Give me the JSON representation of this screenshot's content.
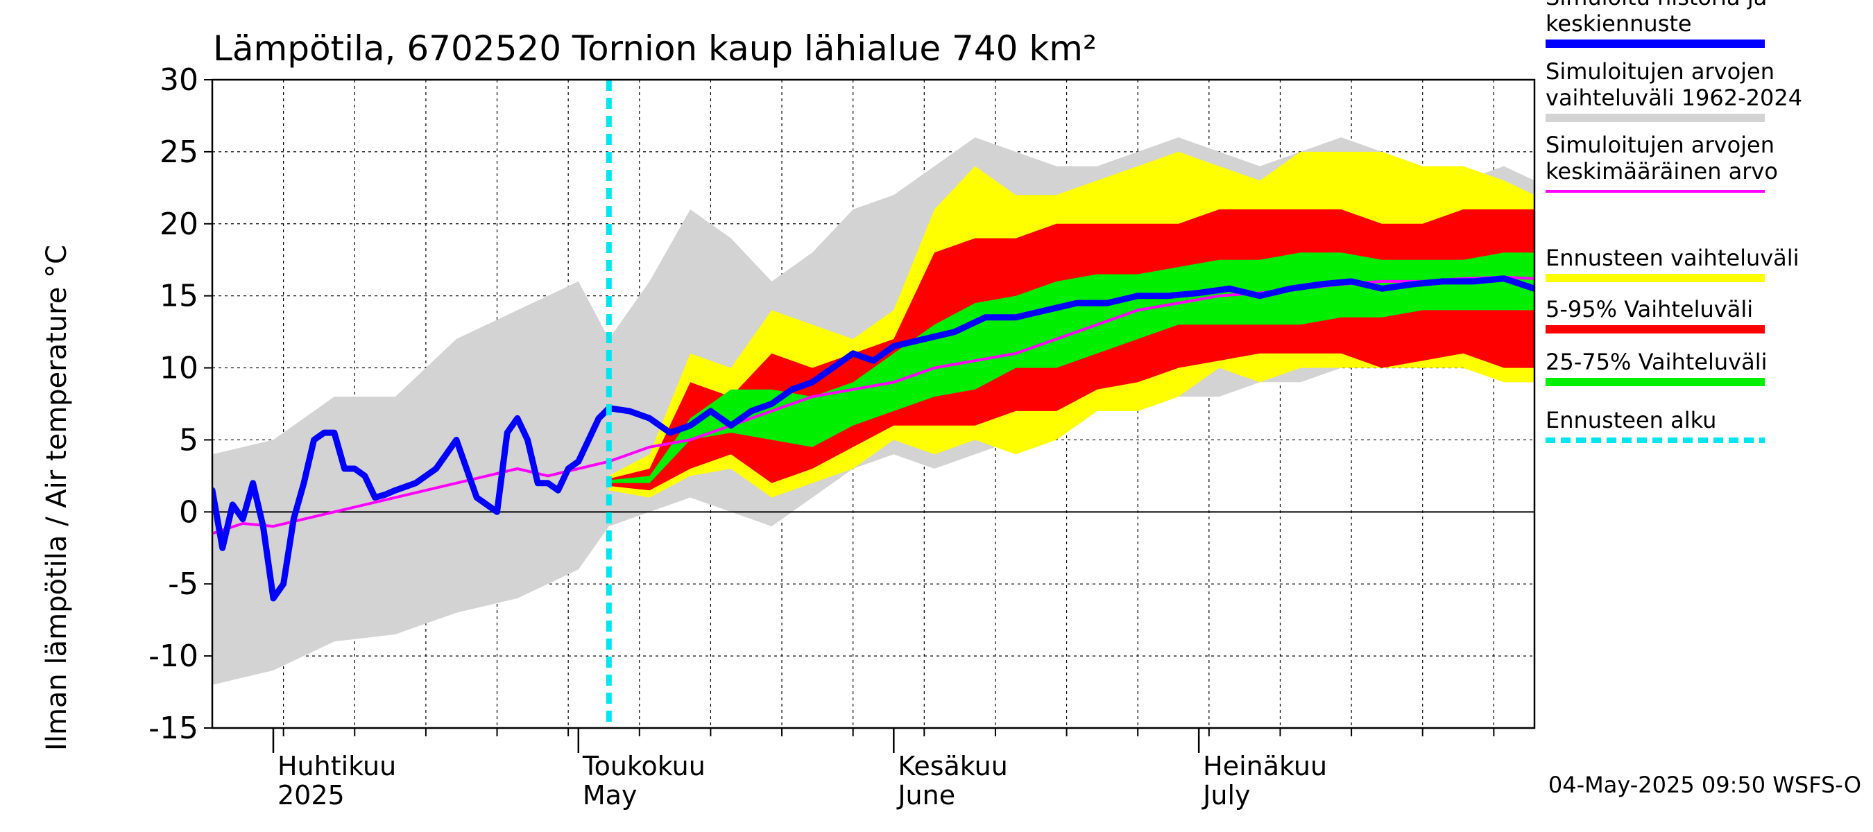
{
  "chart_data": {
    "type": "area",
    "title": "Lämpötila, 6702520 Tornion kaup lähialue 740 km²",
    "ylabel": "Ilman lämpötila / Air temperature   °C",
    "xlabel": "",
    "ylim": [
      -15,
      30
    ],
    "yticks": [
      "30",
      "25",
      "20",
      "15",
      "10",
      "5",
      "0",
      "-5",
      "-10",
      "-15"
    ],
    "xlim": [
      "2025-03-26",
      "2025-08-03"
    ],
    "forecast_start": "2025-05-04",
    "grid": true,
    "legend_position": "right",
    "months": [
      {
        "date": "2025-04-01",
        "label1": "Huhtikuu",
        "label2": "2025"
      },
      {
        "date": "2025-05-01",
        "label1": "Toukokuu",
        "label2": "May"
      },
      {
        "date": "2025-06-01",
        "label1": "Kesäkuu",
        "label2": "June"
      },
      {
        "date": "2025-07-01",
        "label1": "Heinäkuu",
        "label2": "July"
      }
    ],
    "legend": [
      {
        "label": "Simuloitu historia ja\nkeskiennuste",
        "color": "#0000ff"
      },
      {
        "label": "Simuloitujen arvojen\nvaihteluväli 1962-2024",
        "color": "#d3d3d3"
      },
      {
        "label": "Simuloitujen arvojen\nkeskimääräinen arvo",
        "color": "#ff00ff"
      },
      {
        "label": "Ennusteen vaihteluväli",
        "color": "#ffff00"
      },
      {
        "label": "5-95% Vaihteluväli",
        "color": "#ff0000"
      },
      {
        "label": "25-75% Vaihteluväli",
        "color": "#00ee00"
      },
      {
        "label": "Ennusteen alku",
        "color": "#00e5ee"
      }
    ],
    "series": [
      {
        "name": "Simuloitujen arvojen vaihteluväli 1962-2024",
        "kind": "band",
        "color": "#d3d3d3",
        "x": [
          "2025-03-26",
          "2025-04-01",
          "2025-04-07",
          "2025-04-13",
          "2025-04-19",
          "2025-04-25",
          "2025-05-01",
          "2025-05-04",
          "2025-05-08",
          "2025-05-12",
          "2025-05-16",
          "2025-05-20",
          "2025-05-24",
          "2025-05-28",
          "2025-06-01",
          "2025-06-05",
          "2025-06-09",
          "2025-06-13",
          "2025-06-17",
          "2025-06-21",
          "2025-06-25",
          "2025-06-29",
          "2025-07-03",
          "2025-07-07",
          "2025-07-11",
          "2025-07-15",
          "2025-07-19",
          "2025-07-23",
          "2025-07-27",
          "2025-07-31",
          "2025-08-03"
        ],
        "low": [
          -12,
          -11,
          -9,
          -8.5,
          -7,
          -6,
          -4,
          -1,
          0,
          1,
          0,
          -1,
          1,
          3,
          4,
          3,
          4,
          5,
          6,
          7,
          7,
          8,
          8,
          9,
          9,
          10,
          10,
          10,
          10,
          9,
          9
        ],
        "high": [
          4,
          5,
          8,
          8,
          12,
          14,
          16,
          12,
          16,
          21,
          19,
          16,
          18,
          21,
          22,
          24,
          26,
          25,
          24,
          24,
          25,
          26,
          25,
          24,
          25,
          26,
          25,
          24,
          23,
          24,
          23
        ]
      },
      {
        "name": "Ennusteen vaihteluväli",
        "kind": "band",
        "color": "#ffff00",
        "x": [
          "2025-05-04",
          "2025-05-08",
          "2025-05-12",
          "2025-05-16",
          "2025-05-20",
          "2025-05-24",
          "2025-05-28",
          "2025-06-01",
          "2025-06-05",
          "2025-06-09",
          "2025-06-13",
          "2025-06-17",
          "2025-06-21",
          "2025-06-25",
          "2025-06-29",
          "2025-07-03",
          "2025-07-07",
          "2025-07-11",
          "2025-07-15",
          "2025-07-19",
          "2025-07-23",
          "2025-07-27",
          "2025-07-31",
          "2025-08-03"
        ],
        "low": [
          1.5,
          1,
          2.5,
          3,
          1,
          2,
          3,
          5,
          4,
          5,
          4,
          5,
          7,
          7,
          8,
          10,
          9,
          10,
          10,
          10,
          10,
          10,
          9,
          9
        ],
        "high": [
          2.5,
          4,
          11,
          10,
          14,
          13,
          12,
          14,
          21,
          24,
          22,
          22,
          23,
          24,
          25,
          24,
          23,
          25,
          25,
          25,
          24,
          24,
          23,
          22
        ]
      },
      {
        "name": "5-95% Vaihteluväli",
        "kind": "band",
        "color": "#ff0000",
        "x": [
          "2025-05-04",
          "2025-05-08",
          "2025-05-12",
          "2025-05-16",
          "2025-05-20",
          "2025-05-24",
          "2025-05-28",
          "2025-06-01",
          "2025-06-05",
          "2025-06-09",
          "2025-06-13",
          "2025-06-17",
          "2025-06-21",
          "2025-06-25",
          "2025-06-29",
          "2025-07-03",
          "2025-07-07",
          "2025-07-11",
          "2025-07-15",
          "2025-07-19",
          "2025-07-23",
          "2025-07-27",
          "2025-07-31",
          "2025-08-03"
        ],
        "low": [
          1.8,
          1.5,
          3,
          4,
          2,
          3,
          4.5,
          6,
          6,
          6,
          7,
          7,
          8.5,
          9,
          10,
          10.5,
          11,
          11,
          11,
          10,
          10.5,
          11,
          10,
          10
        ],
        "high": [
          2.3,
          3,
          9,
          8,
          11,
          10,
          11,
          12,
          18,
          19,
          19,
          20,
          20,
          20,
          20,
          21,
          21,
          21,
          21,
          20,
          20,
          21,
          21,
          21
        ]
      },
      {
        "name": "25-75% Vaihteluväli",
        "kind": "band",
        "color": "#00ee00",
        "x": [
          "2025-05-04",
          "2025-05-08",
          "2025-05-12",
          "2025-05-16",
          "2025-05-20",
          "2025-05-24",
          "2025-05-28",
          "2025-06-01",
          "2025-06-05",
          "2025-06-09",
          "2025-06-13",
          "2025-06-17",
          "2025-06-21",
          "2025-06-25",
          "2025-06-29",
          "2025-07-03",
          "2025-07-07",
          "2025-07-11",
          "2025-07-15",
          "2025-07-19",
          "2025-07-23",
          "2025-07-27",
          "2025-07-31",
          "2025-08-03"
        ],
        "low": [
          2,
          2,
          5,
          5.5,
          5,
          4.5,
          6,
          7,
          8,
          8.5,
          10,
          10,
          11,
          12,
          13,
          13,
          13,
          13,
          13.5,
          13.5,
          14,
          14,
          14,
          14
        ],
        "high": [
          2.2,
          2.5,
          6.5,
          8.5,
          8.5,
          8,
          9,
          11,
          13,
          14.5,
          15,
          16,
          16.5,
          16.5,
          17,
          17.5,
          17.5,
          18,
          18,
          17.5,
          17.5,
          17.5,
          18,
          18
        ]
      },
      {
        "name": "Simuloitujen arvojen keskimääräinen arvo",
        "kind": "line",
        "color": "#ff00ff",
        "x": [
          "2025-03-26",
          "2025-03-29",
          "2025-04-01",
          "2025-04-04",
          "2025-04-07",
          "2025-04-10",
          "2025-04-13",
          "2025-04-16",
          "2025-04-19",
          "2025-04-22",
          "2025-04-25",
          "2025-04-28",
          "2025-05-01",
          "2025-05-04",
          "2025-05-08",
          "2025-05-12",
          "2025-05-16",
          "2025-05-20",
          "2025-05-24",
          "2025-05-28",
          "2025-06-01",
          "2025-06-05",
          "2025-06-09",
          "2025-06-13",
          "2025-06-17",
          "2025-06-21",
          "2025-06-25",
          "2025-06-29",
          "2025-07-03",
          "2025-07-07",
          "2025-07-11",
          "2025-07-15",
          "2025-07-19",
          "2025-07-23",
          "2025-07-27",
          "2025-07-31",
          "2025-08-03"
        ],
        "values": [
          -1.5,
          -0.8,
          -1,
          -0.5,
          0,
          0.5,
          1,
          1.5,
          2,
          2.5,
          3,
          2.5,
          3,
          3.5,
          4.5,
          5,
          6,
          7,
          8,
          8.5,
          9,
          10,
          10.5,
          11,
          12,
          13,
          14,
          14.5,
          15,
          15.2,
          15.5,
          15.8,
          16,
          16,
          16.2,
          16.3,
          16.2
        ]
      },
      {
        "name": "Simuloitu historia ja keskiennuste",
        "kind": "line",
        "color": "#0000ff",
        "x": [
          "2025-03-26",
          "2025-03-27",
          "2025-03-28",
          "2025-03-29",
          "2025-03-30",
          "2025-03-31",
          "2025-04-01",
          "2025-04-02",
          "2025-04-03",
          "2025-04-04",
          "2025-04-05",
          "2025-04-06",
          "2025-04-07",
          "2025-04-08",
          "2025-04-09",
          "2025-04-10",
          "2025-04-11",
          "2025-04-12",
          "2025-04-13",
          "2025-04-15",
          "2025-04-17",
          "2025-04-19",
          "2025-04-21",
          "2025-04-23",
          "2025-04-24",
          "2025-04-25",
          "2025-04-26",
          "2025-04-27",
          "2025-04-28",
          "2025-04-29",
          "2025-04-30",
          "2025-05-01",
          "2025-05-02",
          "2025-05-03",
          "2025-05-04",
          "2025-05-06",
          "2025-05-08",
          "2025-05-10",
          "2025-05-12",
          "2025-05-14",
          "2025-05-16",
          "2025-05-18",
          "2025-05-20",
          "2025-05-22",
          "2025-05-24",
          "2025-05-26",
          "2025-05-28",
          "2025-05-30",
          "2025-06-01",
          "2025-06-04",
          "2025-06-07",
          "2025-06-10",
          "2025-06-13",
          "2025-06-16",
          "2025-06-19",
          "2025-06-22",
          "2025-06-25",
          "2025-06-28",
          "2025-07-01",
          "2025-07-04",
          "2025-07-07",
          "2025-07-10",
          "2025-07-13",
          "2025-07-16",
          "2025-07-19",
          "2025-07-22",
          "2025-07-25",
          "2025-07-28",
          "2025-07-31",
          "2025-08-03"
        ],
        "values": [
          1.5,
          -2.5,
          0.5,
          -0.5,
          2,
          -1,
          -6,
          -5,
          -0.5,
          2,
          5,
          5.5,
          5.5,
          3,
          3,
          2.5,
          1,
          1.2,
          1.5,
          2,
          3,
          5,
          1,
          0,
          5.5,
          6.5,
          5,
          2,
          2,
          1.5,
          3,
          3.5,
          5,
          6.5,
          7.2,
          7,
          6.5,
          5.5,
          6,
          7,
          6,
          7,
          7.5,
          8.5,
          9,
          10,
          11,
          10.5,
          11.5,
          12,
          12.5,
          13.5,
          13.5,
          14,
          14.5,
          14.5,
          15,
          15,
          15.2,
          15.5,
          15,
          15.5,
          15.8,
          16,
          15.5,
          15.8,
          16,
          16,
          16.2,
          15.5
        ]
      }
    ]
  },
  "footer": "04-May-2025 09:50 WSFS-O"
}
